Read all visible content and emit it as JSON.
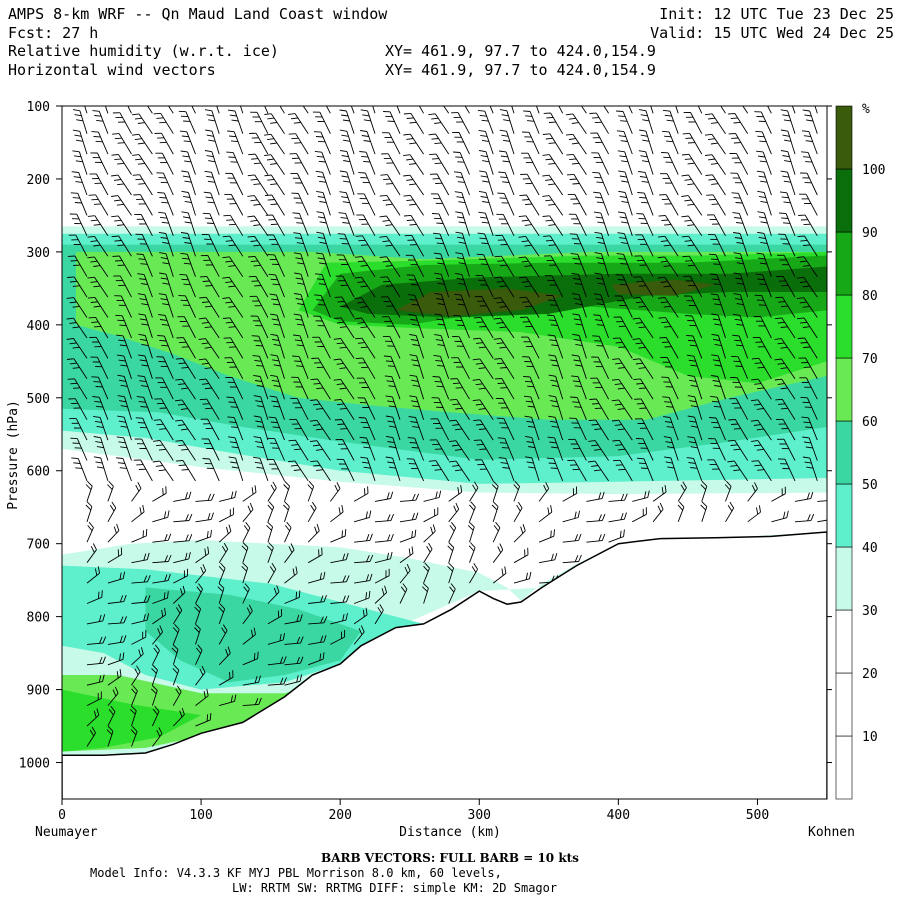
{
  "header": {
    "title": "AMPS 8-km WRF -- Qn Maud Land Coast window",
    "forecast": "Fcst:   27 h",
    "line_rh": "Relative humidity (w.r.t. ice)",
    "line_wind": "Horizontal wind vectors",
    "xy_rh": "XY= 461.9, 97.7 to 424.0,154.9",
    "xy_wind": "XY= 461.9, 97.7 to 424.0,154.9",
    "init": "Init: 12 UTC Tue 23 Dec 25",
    "valid": "Valid: 15 UTC Wed 24 Dec 25"
  },
  "chart_data": {
    "type": "contour-cross-section",
    "xlabel": "Distance (km)",
    "ylabel": "Pressure (hPa)",
    "xlim": [
      0,
      550
    ],
    "ylim": [
      1050,
      100
    ],
    "x_ticks": [
      0,
      100,
      200,
      300,
      400,
      500
    ],
    "y_ticks": [
      100,
      200,
      300,
      400,
      500,
      600,
      700,
      800,
      900,
      1000
    ],
    "left_end_label": "Neumayer",
    "right_end_label": "Kohnen",
    "colorbar": {
      "unit": "%",
      "levels": [
        10,
        20,
        30,
        40,
        50,
        60,
        70,
        80,
        90,
        100
      ],
      "colors": [
        "#ffffff",
        "#ffffff",
        "#ffffff",
        "#c8faea",
        "#5ef0cc",
        "#3ad7a2",
        "#69ea55",
        "#2bde2b",
        "#16a816",
        "#0a6e0a",
        "#3a5a0c"
      ]
    },
    "terrain": [
      [
        0,
        990
      ],
      [
        30,
        990
      ],
      [
        60,
        987
      ],
      [
        80,
        975
      ],
      [
        100,
        960
      ],
      [
        130,
        945
      ],
      [
        160,
        910
      ],
      [
        180,
        880
      ],
      [
        200,
        865
      ],
      [
        215,
        840
      ],
      [
        240,
        815
      ],
      [
        260,
        810
      ],
      [
        280,
        790
      ],
      [
        300,
        765
      ],
      [
        310,
        775
      ],
      [
        320,
        783
      ],
      [
        330,
        780
      ],
      [
        345,
        760
      ],
      [
        370,
        730
      ],
      [
        400,
        700
      ],
      [
        430,
        693
      ],
      [
        470,
        692
      ],
      [
        510,
        690
      ],
      [
        550,
        684
      ]
    ],
    "rh_fields": [
      {
        "level": 30,
        "points": [
          [
            0,
            265
          ],
          [
            550,
            265
          ],
          [
            550,
            684
          ],
          [
            510,
            690
          ],
          [
            430,
            693
          ],
          [
            400,
            700
          ],
          [
            370,
            728
          ],
          [
            345,
            755
          ],
          [
            330,
            778
          ],
          [
            320,
            760
          ],
          [
            300,
            740
          ],
          [
            250,
            720
          ],
          [
            200,
            705
          ],
          [
            150,
            700
          ],
          [
            100,
            695
          ],
          [
            50,
            700
          ],
          [
            0,
            715
          ],
          [
            0,
            990
          ],
          [
            60,
            987
          ],
          [
            100,
            960
          ],
          [
            160,
            910
          ],
          [
            200,
            865
          ],
          [
            240,
            815
          ],
          [
            300,
            765
          ],
          [
            345,
            760
          ],
          [
            400,
            700
          ],
          [
            550,
            684
          ],
          [
            550,
            630
          ],
          [
            400,
            632
          ],
          [
            300,
            630
          ],
          [
            200,
            615
          ],
          [
            100,
            595
          ],
          [
            40,
            580
          ],
          [
            0,
            570
          ]
        ]
      },
      {
        "level": 40,
        "points": [
          [
            0,
            275
          ],
          [
            550,
            275
          ],
          [
            550,
            610
          ],
          [
            400,
            615
          ],
          [
            300,
            618
          ],
          [
            200,
            600
          ],
          [
            120,
            575
          ],
          [
            60,
            555
          ],
          [
            0,
            545
          ]
        ]
      },
      {
        "level": 40,
        "points": [
          [
            0,
            730
          ],
          [
            60,
            735
          ],
          [
            150,
            755
          ],
          [
            220,
            790
          ],
          [
            260,
            810
          ],
          [
            200,
            865
          ],
          [
            160,
            890
          ],
          [
            100,
            900
          ],
          [
            60,
            880
          ],
          [
            30,
            850
          ],
          [
            0,
            840
          ]
        ]
      },
      {
        "level": 50,
        "points": [
          [
            0,
            290
          ],
          [
            550,
            290
          ],
          [
            550,
            540
          ],
          [
            480,
            560
          ],
          [
            400,
            580
          ],
          [
            300,
            585
          ],
          [
            200,
            560
          ],
          [
            130,
            540
          ],
          [
            70,
            520
          ],
          [
            0,
            515
          ]
        ]
      },
      {
        "level": 50,
        "points": [
          [
            60,
            760
          ],
          [
            120,
            770
          ],
          [
            170,
            790
          ],
          [
            215,
            820
          ],
          [
            200,
            860
          ],
          [
            160,
            880
          ],
          [
            120,
            890
          ],
          [
            85,
            860
          ],
          [
            60,
            820
          ]
        ]
      },
      {
        "level": 60,
        "points": [
          [
            10,
            300
          ],
          [
            180,
            300
          ],
          [
            260,
            310
          ],
          [
            380,
            300
          ],
          [
            550,
            300
          ],
          [
            550,
            470
          ],
          [
            480,
            500
          ],
          [
            420,
            530
          ],
          [
            350,
            530
          ],
          [
            280,
            520
          ],
          [
            220,
            510
          ],
          [
            170,
            500
          ],
          [
            120,
            470
          ],
          [
            80,
            440
          ],
          [
            40,
            415
          ],
          [
            10,
            400
          ]
        ]
      },
      {
        "level": 60,
        "points": [
          [
            0,
            880
          ],
          [
            40,
            880
          ],
          [
            100,
            905
          ],
          [
            160,
            905
          ],
          [
            190,
            890
          ],
          [
            150,
            940
          ],
          [
            110,
            960
          ],
          [
            60,
            980
          ],
          [
            0,
            985
          ]
        ]
      },
      {
        "level": 70,
        "points": [
          [
            190,
            315
          ],
          [
            260,
            312
          ],
          [
            380,
            305
          ],
          [
            460,
            305
          ],
          [
            550,
            300
          ],
          [
            550,
            450
          ],
          [
            500,
            480
          ],
          [
            450,
            470
          ],
          [
            400,
            430
          ],
          [
            330,
            410
          ],
          [
            260,
            405
          ],
          [
            200,
            400
          ],
          [
            170,
            380
          ]
        ]
      },
      {
        "level": 70,
        "points": [
          [
            0,
            900
          ],
          [
            50,
            920
          ],
          [
            100,
            935
          ],
          [
            70,
            965
          ],
          [
            30,
            980
          ],
          [
            0,
            985
          ]
        ]
      },
      {
        "level": 80,
        "points": [
          [
            200,
            330
          ],
          [
            260,
            318
          ],
          [
            350,
            315
          ],
          [
            450,
            315
          ],
          [
            550,
            305
          ],
          [
            550,
            380
          ],
          [
            500,
            390
          ],
          [
            450,
            385
          ],
          [
            380,
            375
          ],
          [
            300,
            385
          ],
          [
            250,
            400
          ],
          [
            200,
            395
          ],
          [
            180,
            380
          ]
        ]
      },
      {
        "level": 90,
        "points": [
          [
            230,
            345
          ],
          [
            300,
            335
          ],
          [
            400,
            330
          ],
          [
            480,
            330
          ],
          [
            550,
            320
          ],
          [
            550,
            355
          ],
          [
            480,
            355
          ],
          [
            420,
            360
          ],
          [
            350,
            385
          ],
          [
            280,
            390
          ],
          [
            220,
            385
          ],
          [
            200,
            375
          ]
        ]
      },
      {
        "level": 100,
        "points": [
          [
            265,
            355
          ],
          [
            320,
            350
          ],
          [
            360,
            360
          ],
          [
            330,
            380
          ],
          [
            280,
            388
          ],
          [
            240,
            380
          ]
        ]
      },
      {
        "level": 100,
        "points": [
          [
            395,
            345
          ],
          [
            440,
            338
          ],
          [
            470,
            345
          ],
          [
            440,
            360
          ],
          [
            400,
            358
          ]
        ]
      }
    ],
    "wind_columns_km": [
      18,
      33,
      50,
      65,
      80,
      96,
      113,
      130,
      148,
      160,
      177,
      193,
      210,
      225,
      243,
      260,
      278,
      293,
      310,
      325,
      343,
      360,
      377,
      393,
      410,
      425,
      443,
      460,
      477,
      493,
      510,
      527,
      543
    ]
  },
  "footer": {
    "barb_note": "BARB VECTORS:  FULL BARB = 10 kts",
    "model_line1": "Model Info: V4.3.3   KF     MYJ PBL  Morrison           8.0 km,  60 levels,",
    "model_line2": "LW: RRTM SW: RRTMG   DIFF: simple KM: 2D Smagor"
  }
}
